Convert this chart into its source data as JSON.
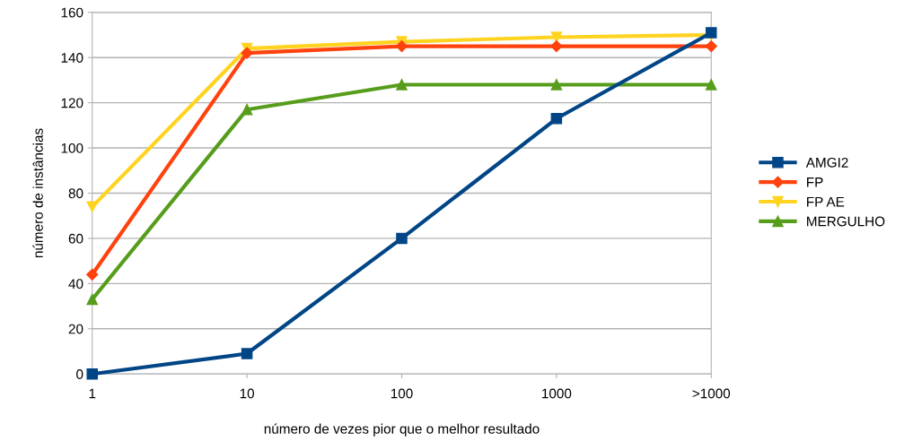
{
  "chart_data": {
    "type": "line",
    "xlabel": "número de vezes pior que o melhor resultado",
    "ylabel": "número de instâncias",
    "categories": [
      "1",
      "10",
      "100",
      "1000",
      ">1000"
    ],
    "series": [
      {
        "name": "AMGI2",
        "color": "#004586",
        "marker": "square",
        "values": [
          0,
          9,
          60,
          113,
          151
        ]
      },
      {
        "name": "FP",
        "color": "#ff420e",
        "marker": "diamond",
        "values": [
          44,
          142,
          145,
          145,
          145
        ]
      },
      {
        "name": "FP AE",
        "color": "#ffd320",
        "marker": "triangle-down",
        "values": [
          74,
          144,
          147,
          149,
          150
        ]
      },
      {
        "name": "MERGULHO",
        "color": "#579d1c",
        "marker": "triangle",
        "values": [
          33,
          117,
          128,
          128,
          128
        ]
      }
    ],
    "ylim": [
      0,
      160
    ],
    "yticks": [
      0,
      20,
      40,
      60,
      80,
      100,
      120,
      140,
      160
    ],
    "grid": "y",
    "legend": "right",
    "line_style": "solid"
  }
}
